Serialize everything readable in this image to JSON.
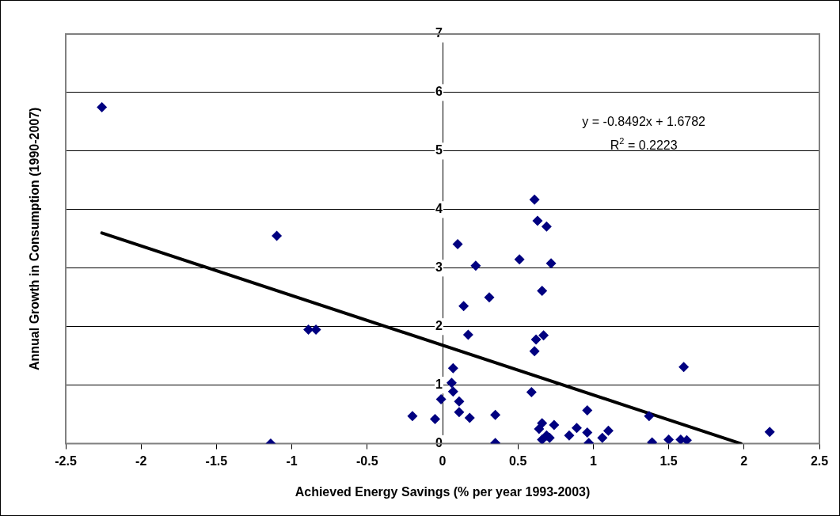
{
  "chart_data": {
    "type": "scatter",
    "xlabel": "Achieved Energy Savings (% per year 1993-2003)",
    "ylabel": "Annual Growth in Consumption (1990-2007)",
    "xlim": [
      -2.5,
      2.5
    ],
    "xticks": [
      -2.5,
      -2,
      -1.5,
      -1,
      -0.5,
      0,
      0.5,
      1,
      1.5,
      2,
      2.5
    ],
    "ylim": [
      0,
      7
    ],
    "yticks": [
      0,
      1,
      2,
      3,
      4,
      5,
      6,
      7
    ],
    "grid": "y",
    "legend": false,
    "marker": "diamond",
    "annotations": [
      "y = -0.8492x + 1.6782",
      "R$^{2}$ = 0.2223"
    ],
    "series": [
      {
        "type": "scatter",
        "color": "#000080",
        "x": [
          -2.26,
          -1.1,
          -0.89,
          -0.84,
          -1.14,
          -0.2,
          -0.05,
          -0.01,
          0.1,
          0.22,
          0.14,
          0.31,
          0.17,
          0.07,
          0.06,
          0.07,
          0.11,
          0.11,
          0.18,
          0.35,
          0.35,
          0.51,
          0.61,
          0.63,
          0.69,
          0.72,
          0.66,
          0.67,
          0.62,
          0.61,
          0.59,
          0.96,
          0.66,
          0.64,
          0.74,
          0.69,
          0.66,
          0.71,
          0.84,
          0.89,
          0.96,
          0.97,
          1.06,
          1.1,
          1.37,
          1.39,
          1.5,
          1.58,
          1.62,
          1.6,
          2.17
        ],
        "values": [
          5.75,
          3.55,
          1.95,
          1.95,
          0,
          0.47,
          0.42,
          0.76,
          3.41,
          3.04,
          2.35,
          2.5,
          1.86,
          1.29,
          1.04,
          0.89,
          0.72,
          0.54,
          0.44,
          0.49,
          0.01,
          3.15,
          4.17,
          3.81,
          3.71,
          3.08,
          2.61,
          1.85,
          1.78,
          1.58,
          0.88,
          0.57,
          0.35,
          0.25,
          0.32,
          0.14,
          0.07,
          0.1,
          0.14,
          0.27,
          0.19,
          0.01,
          0.1,
          0.22,
          0.47,
          0.02,
          0.07,
          0.07,
          0.06,
          1.31,
          0.2
        ]
      },
      {
        "type": "line",
        "color": "#000000",
        "marker": "none",
        "x": [
          -2.26,
          1.98
        ],
        "values": [
          3.6,
          0
        ]
      }
    ]
  }
}
